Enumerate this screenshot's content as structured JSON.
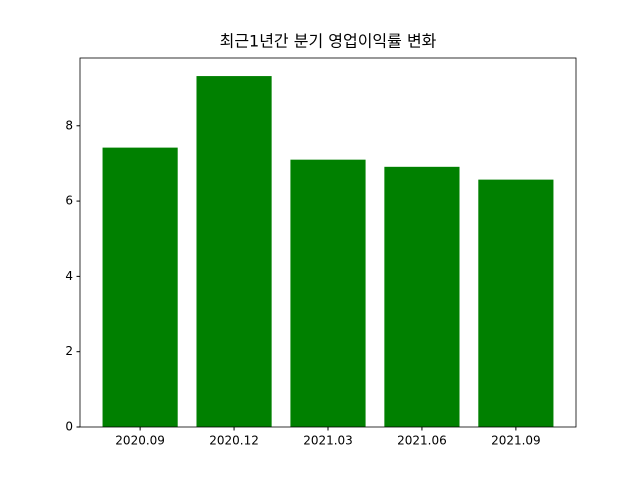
{
  "chart_data": {
    "type": "bar",
    "title": "최근1년간 분기 영업이익률 변화",
    "categories": [
      "2020.09",
      "2020.12",
      "2021.03",
      "2021.06",
      "2021.09"
    ],
    "values": [
      7.42,
      9.32,
      7.1,
      6.91,
      6.57
    ],
    "color": "#008000",
    "ylim": [
      0,
      9.8
    ],
    "yticks": [
      0,
      2,
      4,
      6,
      8
    ],
    "grid": false
  }
}
